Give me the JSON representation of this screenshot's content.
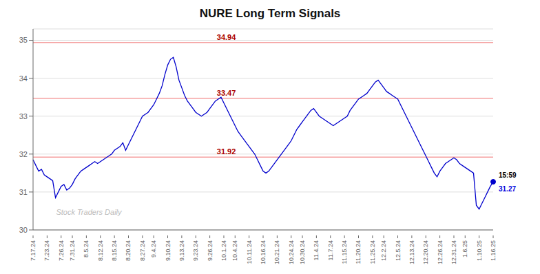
{
  "chart_data": {
    "type": "line",
    "title": "NURE Long Term Signals",
    "categories": [
      "7.17.24",
      null,
      null,
      null,
      null,
      "7.23.24",
      null,
      null,
      null,
      null,
      "7.26.24",
      null,
      null,
      null,
      "7.31.24",
      null,
      null,
      null,
      null,
      "8.5.24",
      null,
      null,
      null,
      null,
      "8.12.24",
      null,
      null,
      null,
      null,
      "8.15.24",
      null,
      null,
      null,
      null,
      "8.20.24",
      null,
      null,
      null,
      null,
      "8.27.24",
      null,
      null,
      null,
      "9.4.24",
      null,
      null,
      null,
      null,
      "9.10.24",
      null,
      null,
      null,
      null,
      "9.13.24",
      null,
      null,
      null,
      null,
      "9.23.24",
      null,
      null,
      null,
      null,
      "9.26.24",
      null,
      null,
      null,
      null,
      "10.1.24",
      null,
      null,
      null,
      "10.4.24",
      null,
      null,
      null,
      null,
      "10.11.24",
      null,
      null,
      null,
      null,
      "10.16.24",
      null,
      null,
      null,
      null,
      "10.21.24",
      null,
      null,
      null,
      null,
      "10.24.24",
      null,
      null,
      null,
      "10.30.24",
      null,
      null,
      null,
      null,
      "11.4.24",
      null,
      null,
      null,
      null,
      "11.7.24",
      null,
      null,
      null,
      null,
      "11.15.24",
      null,
      null,
      null,
      null,
      "11.20.24",
      null,
      null,
      null,
      null,
      "11.25.24",
      null,
      null,
      null,
      "12.2.24",
      null,
      null,
      null,
      null,
      "12.5.24",
      null,
      null,
      null,
      null,
      "12.13.24",
      null,
      null,
      null,
      null,
      "12.20.24",
      null,
      null,
      null,
      null,
      "12.26.24",
      null,
      null,
      null,
      null,
      "12.31.24",
      null,
      null,
      null,
      "1.6.25",
      null,
      null,
      null,
      null,
      "1.10.25",
      null,
      null,
      null,
      null,
      "1.16.25"
    ],
    "values": [
      31.85,
      31.7,
      31.55,
      31.6,
      31.45,
      31.4,
      31.35,
      31.3,
      30.85,
      31.0,
      31.15,
      31.2,
      31.05,
      31.1,
      31.2,
      31.35,
      31.45,
      31.55,
      31.6,
      31.65,
      31.7,
      31.75,
      31.8,
      31.75,
      31.8,
      31.85,
      31.9,
      31.95,
      32.0,
      32.1,
      32.15,
      32.2,
      32.3,
      32.1,
      32.25,
      32.4,
      32.55,
      32.7,
      32.85,
      33.0,
      33.05,
      33.1,
      33.2,
      33.3,
      33.45,
      33.6,
      33.8,
      34.1,
      34.35,
      34.5,
      34.55,
      34.3,
      33.95,
      33.75,
      33.55,
      33.4,
      33.3,
      33.2,
      33.1,
      33.05,
      33.0,
      33.05,
      33.1,
      33.2,
      33.3,
      33.4,
      33.45,
      33.5,
      33.35,
      33.2,
      33.05,
      32.9,
      32.75,
      32.6,
      32.5,
      32.4,
      32.3,
      32.2,
      32.1,
      32.0,
      31.85,
      31.7,
      31.55,
      31.5,
      31.55,
      31.65,
      31.75,
      31.85,
      31.95,
      32.05,
      32.15,
      32.25,
      32.35,
      32.5,
      32.65,
      32.75,
      32.85,
      32.95,
      33.05,
      33.15,
      33.2,
      33.1,
      33.0,
      32.95,
      32.9,
      32.85,
      32.8,
      32.75,
      32.8,
      32.85,
      32.9,
      32.95,
      33.0,
      33.15,
      33.25,
      33.35,
      33.45,
      33.5,
      33.55,
      33.6,
      33.7,
      33.8,
      33.9,
      33.95,
      33.85,
      33.75,
      33.65,
      33.6,
      33.55,
      33.5,
      33.45,
      33.3,
      33.15,
      33.0,
      32.85,
      32.7,
      32.55,
      32.4,
      32.25,
      32.1,
      31.95,
      31.8,
      31.65,
      31.5,
      31.4,
      31.55,
      31.65,
      31.75,
      31.8,
      31.85,
      31.9,
      31.85,
      31.75,
      31.7,
      31.65,
      31.6,
      31.55,
      31.5,
      30.65,
      30.55,
      30.7,
      30.85,
      31.0,
      31.15,
      31.27
    ],
    "color": "#0000cc",
    "hlines": [
      {
        "value": 34.94,
        "label": "34.94",
        "color": "#f5a0a0"
      },
      {
        "value": 33.47,
        "label": "33.47",
        "color": "#f5a0a0"
      },
      {
        "value": 31.92,
        "label": "31.92",
        "color": "#f5a0a0"
      }
    ],
    "watermark": "Stock Traders Daily",
    "last_point_labels": [
      "15:59",
      "31.27"
    ],
    "ylim": [
      30,
      35.3
    ],
    "yticks": [
      30,
      31,
      32,
      33,
      34,
      35
    ],
    "grid": true
  }
}
